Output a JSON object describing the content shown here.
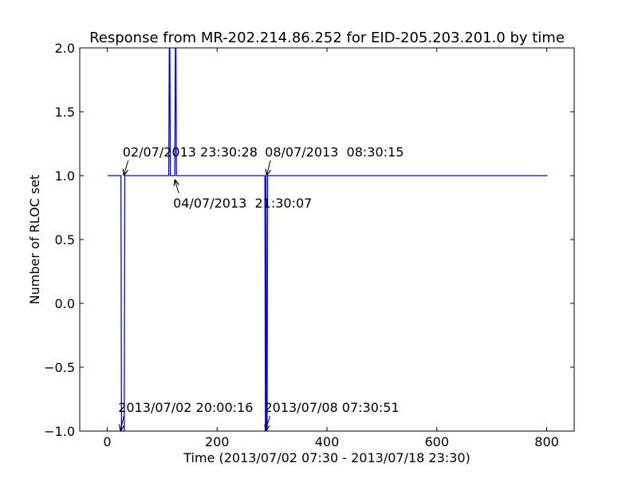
{
  "chart_data": {
    "type": "line",
    "title": "Response from MR-202.214.86.252 for EID-205.203.201.0 by time",
    "xlabel": "Time (2013/07/02 07:30 - 2013/07/18 23:30)",
    "ylabel": "Number of RLOC set",
    "xlim": [
      -50,
      850
    ],
    "ylim": [
      -1.0,
      2.0
    ],
    "x_ticks": [
      0,
      200,
      400,
      600,
      800
    ],
    "x_tick_labels": [
      "0",
      "200",
      "400",
      "600",
      "800"
    ],
    "y_ticks": [
      -1.0,
      -0.5,
      0.0,
      0.5,
      1.0,
      1.5,
      2.0
    ],
    "y_tick_labels": [
      "−1.0",
      "−0.5",
      "0.0",
      "0.5",
      "1.0",
      "1.5",
      "2.0"
    ],
    "grid": false,
    "series": [
      {
        "color": "#0000ff",
        "x": [
          1,
          25,
          26,
          31,
          32,
          112,
          113,
          114,
          115,
          123,
          124,
          125,
          126,
          287,
          288,
          289,
          290,
          291,
          292,
          801
        ],
        "y": [
          1,
          1,
          -1,
          -1,
          1,
          1,
          2,
          2,
          1,
          1,
          2,
          2,
          1,
          1,
          -1,
          1,
          -1,
          -1,
          1,
          1
        ]
      }
    ],
    "annotations": [
      {
        "text": "02/07/2013 23:30:28",
        "x": 30,
        "y": 1.0,
        "text_x": 28,
        "text_y": 1.15
      },
      {
        "text": "08/07/2013  08:30:15",
        "x": 290,
        "y": 1.0,
        "text_x": 287,
        "text_y": 1.15
      },
      {
        "text": "04/07/2013  21:30:07",
        "x": 123,
        "y": 0.97,
        "text_x": 120,
        "text_y": 0.75
      },
      {
        "text": "2013/07/02 20:00:16",
        "x": 24,
        "y": -1.0,
        "text_x": 20,
        "text_y": -0.85
      },
      {
        "text": "2013/07/08 07:30:51",
        "x": 288,
        "y": -1.0,
        "text_x": 286,
        "text_y": -0.85
      }
    ]
  }
}
